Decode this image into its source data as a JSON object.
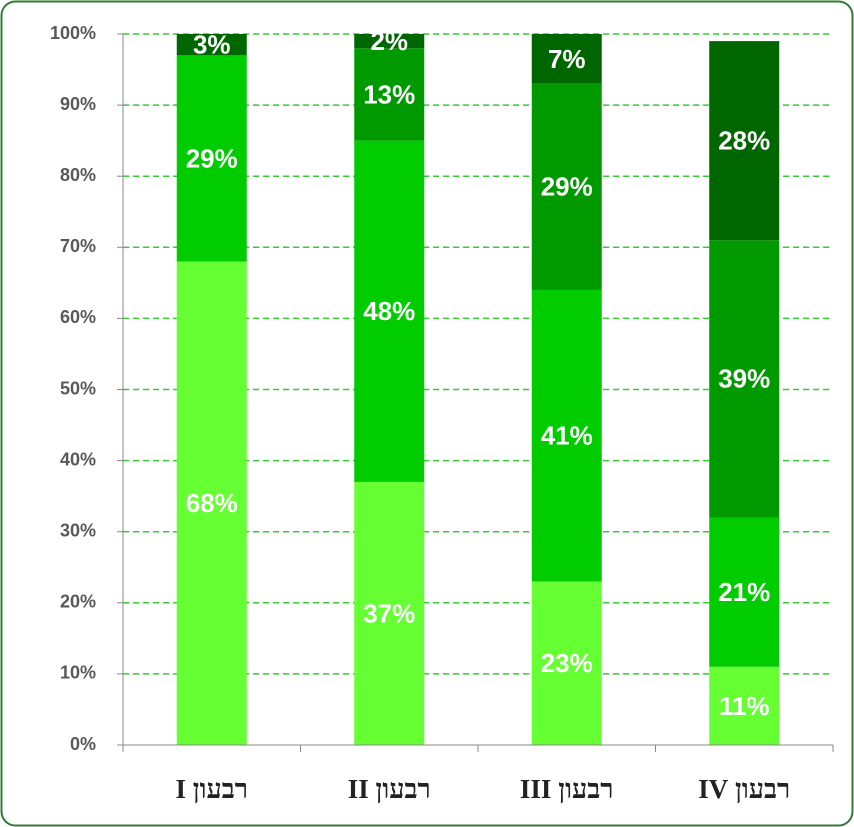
{
  "chart_data": {
    "type": "stacked_bar",
    "categories": [
      "רבעון I",
      "רבעון II",
      "רבעון III",
      "רבעון IV"
    ],
    "series": [
      {
        "color": "#66ff33",
        "values": [
          68,
          37,
          23,
          11
        ],
        "value_labels": [
          "68%",
          "37%",
          "23%",
          "11%"
        ]
      },
      {
        "color": "#00cc00",
        "values": [
          29,
          48,
          41,
          21
        ],
        "value_labels": [
          "29%",
          "48%",
          "41%",
          "21%"
        ]
      },
      {
        "color": "#009900",
        "values": [
          null,
          13,
          29,
          39
        ],
        "value_labels": [
          null,
          "13%",
          "29%",
          "39%"
        ]
      },
      {
        "color": "#006600",
        "values": [
          3,
          2,
          7,
          28
        ],
        "value_labels": [
          "3%",
          "2%",
          "7%",
          "28%"
        ]
      }
    ],
    "ylim": [
      0,
      100
    ],
    "yticks": [
      {
        "value": 0,
        "label": "0%"
      },
      {
        "value": 10,
        "label": "10%"
      },
      {
        "value": 20,
        "label": "20%"
      },
      {
        "value": 30,
        "label": "30%"
      },
      {
        "value": 40,
        "label": "40%"
      },
      {
        "value": 50,
        "label": "50%"
      },
      {
        "value": 60,
        "label": "60%"
      },
      {
        "value": 70,
        "label": "70%"
      },
      {
        "value": 80,
        "label": "80%"
      },
      {
        "value": 90,
        "label": "90%"
      },
      {
        "value": 100,
        "label": "100%"
      }
    ],
    "grid": true
  }
}
